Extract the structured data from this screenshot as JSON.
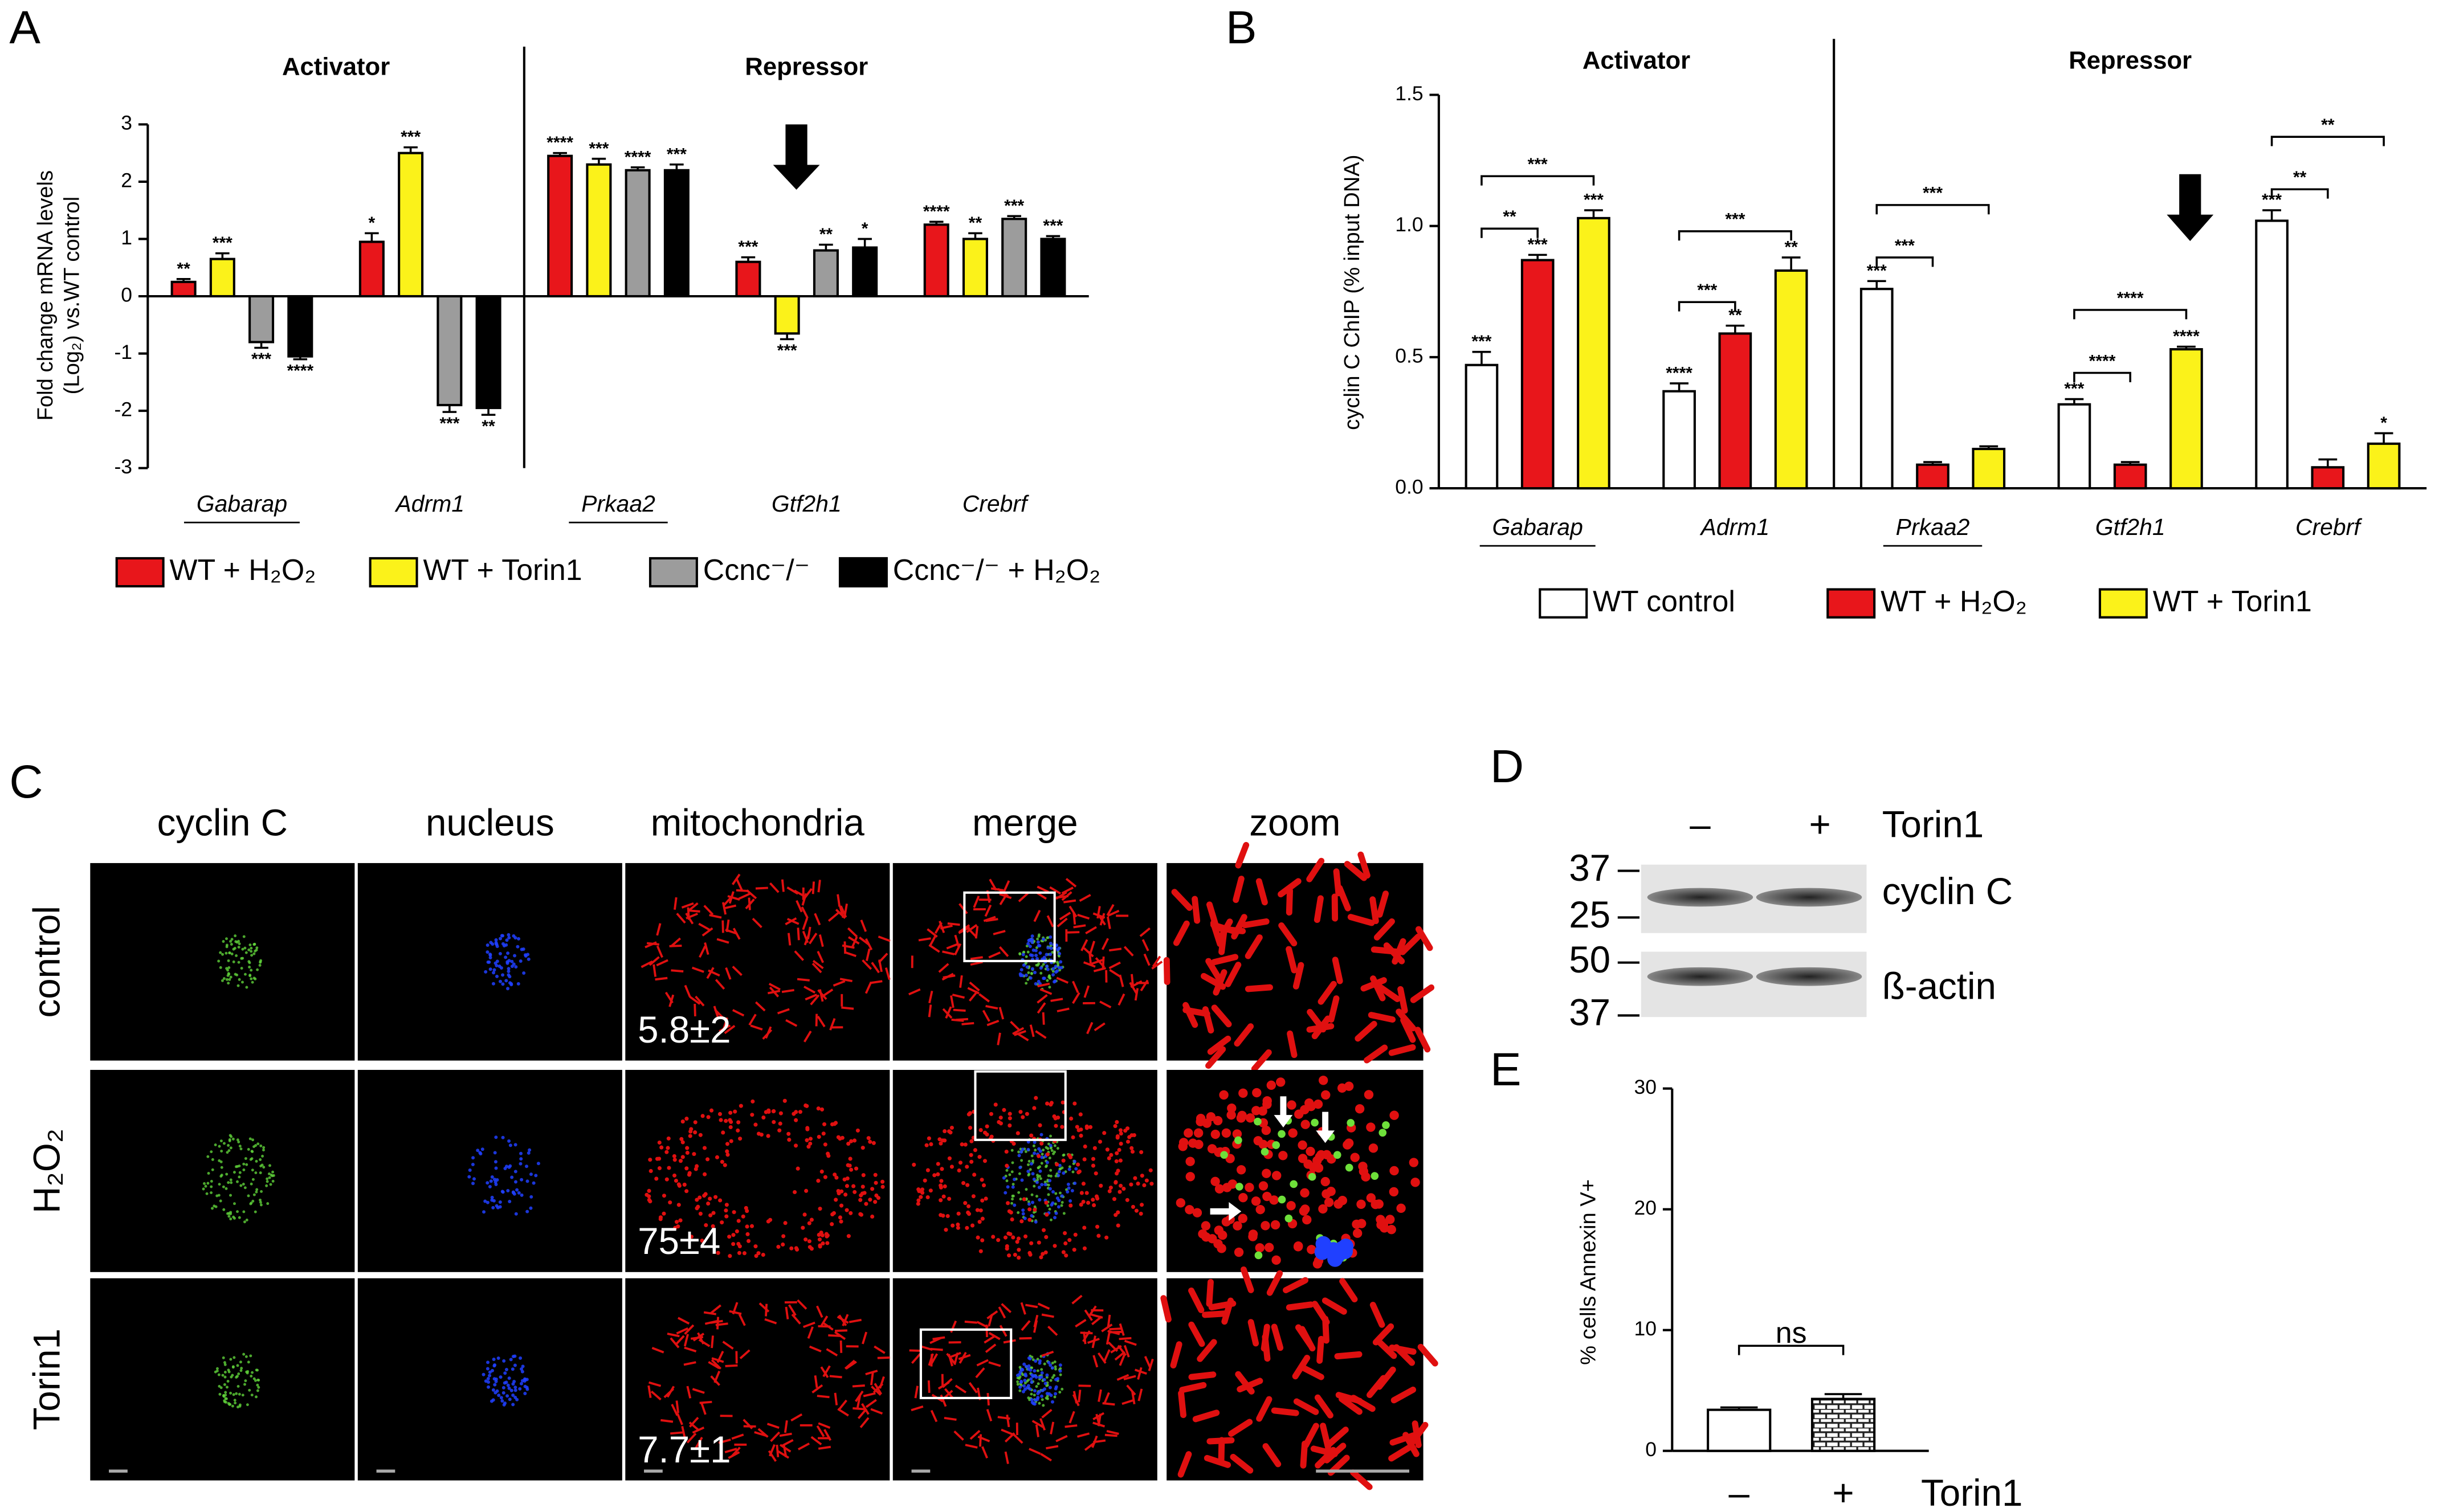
{
  "panel_labels": [
    "A",
    "B",
    "C",
    "D",
    "E"
  ],
  "chart_data": [
    {
      "type": "bar",
      "group_labels": [
        "Activator",
        "Repressor"
      ],
      "ylabel": [
        "Fold change mRNA levels",
        "(Log₂) vs.WT control"
      ],
      "categories": [
        "Gabarap",
        "Adrm1",
        "Prkaa2",
        "Gtf2h1",
        "Crebrf"
      ],
      "underlined": [
        true,
        false,
        true,
        false,
        false
      ],
      "series": [
        {
          "name": "WT + H₂O₂",
          "color": "#e8161b",
          "values": [
            0.25,
            0.95,
            2.45,
            0.6,
            1.25
          ],
          "errors": [
            0.05,
            0.15,
            0.05,
            0.08,
            0.05
          ],
          "significance": [
            "**",
            "*",
            "****",
            "***",
            "****"
          ]
        },
        {
          "name": "WT + Torin1",
          "color": "#fbf21a",
          "values": [
            0.65,
            2.5,
            2.3,
            -0.65,
            1.0
          ],
          "errors": [
            0.1,
            0.1,
            0.1,
            0.1,
            0.1
          ],
          "significance": [
            "***",
            "***",
            "***",
            "***",
            "**"
          ]
        },
        {
          "name": "Ccnc⁻/⁻",
          "color": "#9c9c9c",
          "values": [
            -0.8,
            -1.9,
            2.2,
            0.8,
            1.35
          ],
          "errors": [
            0.1,
            0.12,
            0.05,
            0.1,
            0.05
          ],
          "significance": [
            "***",
            "***",
            "****",
            "**",
            "***"
          ]
        },
        {
          "name": "Ccnc⁻/⁻ + H₂O₂",
          "color": "#000000",
          "values": [
            -1.05,
            -1.95,
            2.2,
            0.85,
            1.0
          ],
          "errors": [
            0.05,
            0.12,
            0.1,
            0.15,
            0.05
          ],
          "significance": [
            "****",
            "**",
            "***",
            "*",
            "***"
          ]
        }
      ],
      "ylim": [
        -3,
        3
      ],
      "yticks": [
        -3,
        -2,
        -1,
        0,
        1,
        2,
        3
      ]
    },
    {
      "type": "bar",
      "group_labels": [
        "Activator",
        "Repressor"
      ],
      "ylabel": "cyclin C ChIP (% input DNA)",
      "categories": [
        "Gabarap",
        "Adrm1",
        "Prkaa2",
        "Gtf2h1",
        "Crebrf"
      ],
      "underlined": [
        true,
        false,
        true,
        false,
        false
      ],
      "series": [
        {
          "name": "WT control",
          "color": "#ffffff",
          "values": [
            0.47,
            0.37,
            0.76,
            0.32,
            1.02
          ],
          "errors": [
            0.05,
            0.03,
            0.03,
            0.02,
            0.04
          ],
          "significance": [
            "***",
            "****",
            "***",
            "***",
            "***"
          ]
        },
        {
          "name": "WT + H₂O₂",
          "color": "#e8161b",
          "values": [
            0.87,
            0.59,
            0.09,
            0.09,
            0.08
          ],
          "errors": [
            0.02,
            0.03,
            0.01,
            0.01,
            0.03
          ],
          "significance": [
            "***",
            "**",
            null,
            null,
            null
          ]
        },
        {
          "name": "WT + Torin1",
          "color": "#fbf21a",
          "values": [
            1.03,
            0.83,
            0.15,
            0.53,
            0.17
          ],
          "errors": [
            0.03,
            0.05,
            0.01,
            0.01,
            0.04
          ],
          "significance": [
            "***",
            "**",
            null,
            "****",
            "*"
          ]
        }
      ],
      "brackets": [
        [
          "**",
          "***"
        ],
        [
          "***",
          "***"
        ],
        [
          "***",
          "***"
        ],
        [
          "****",
          "****"
        ],
        [
          "**",
          "**"
        ]
      ],
      "ylim": [
        0,
        1.5
      ],
      "yticks": [
        {
          "value": 0,
          "label": "0.0"
        },
        0.5,
        {
          "value": 1,
          "label": "1.0"
        },
        1.5
      ]
    },
    {
      "type": "bar",
      "ylabel": "% cells Annexin V+",
      "categories": [
        "–",
        "+"
      ],
      "xlabel": "Torin1",
      "values": [
        3.4,
        4.3
      ],
      "errors": [
        0.2,
        0.4
      ],
      "colors": [
        "#ffffff",
        "#9a9a9a"
      ],
      "patterns": [
        null,
        "brick"
      ],
      "bracket": "ns",
      "ylim": [
        0,
        30
      ],
      "yticks": [
        0,
        10,
        20,
        30
      ]
    }
  ],
  "microscopy": {
    "columns": [
      "cyclin C",
      "nucleus",
      "mitochondria",
      "merge",
      "zoom"
    ],
    "rows": [
      "control",
      "H₂O₂",
      "Torin1"
    ],
    "mito_counts": [
      "5.8±2",
      "75±4",
      "7.7±1"
    ]
  },
  "western_blot": {
    "lanes": [
      "–",
      "+"
    ],
    "treatment": "Torin1",
    "markers": [
      "37",
      "25",
      "50",
      "37"
    ],
    "bands": [
      "cyclin C",
      "ß-actin"
    ]
  }
}
